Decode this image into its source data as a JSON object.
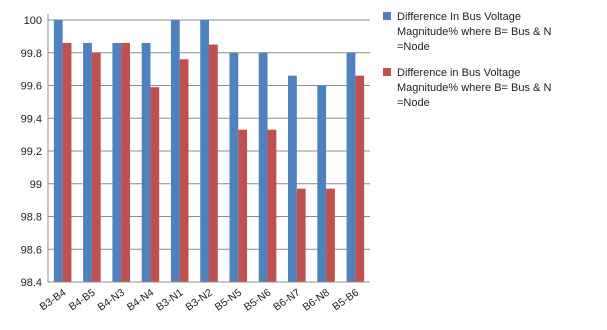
{
  "chart_data": {
    "type": "bar",
    "title": "",
    "xlabel": "",
    "ylabel": "",
    "ylim": [
      98.4,
      100
    ],
    "yticks": [
      "100",
      "99.8",
      "99.6",
      "99.4",
      "99.2",
      "99",
      "98.8",
      "98.6",
      "98.4"
    ],
    "ytick_values": [
      100,
      99.8,
      99.6,
      99.4,
      99.2,
      99,
      98.8,
      98.6,
      98.4
    ],
    "grid": true,
    "legend_position": "right",
    "categories": [
      "B3-B4",
      "B4-B5",
      "B4-N3",
      "B4-N4",
      "B3-N1",
      "B3-N2",
      "B5-N5",
      "B5-N6",
      "B6-N7",
      "B6-N8",
      "B5-B6"
    ],
    "series": [
      {
        "name": "Difference In Bus Voltage Magnitude% where B= Bus & N =Node",
        "legend_lines": [
          "Difference In Bus Voltage",
          "Magnitude% where B= Bus & N",
          "=Node"
        ],
        "color": "#4F81BD",
        "values": [
          100,
          99.86,
          99.86,
          99.86,
          100,
          100,
          99.8,
          99.8,
          99.66,
          99.6,
          99.8
        ]
      },
      {
        "name": "Difference in Bus Voltage Magnitude% where B= Bus & N =Node",
        "legend_lines": [
          "Difference in Bus Voltage",
          "Magnitude% where B= Bus & N",
          "=Node"
        ],
        "color": "#C0504D",
        "values": [
          99.86,
          99.8,
          99.86,
          99.59,
          99.76,
          99.85,
          99.33,
          99.33,
          98.97,
          98.97,
          99.66
        ]
      }
    ]
  }
}
